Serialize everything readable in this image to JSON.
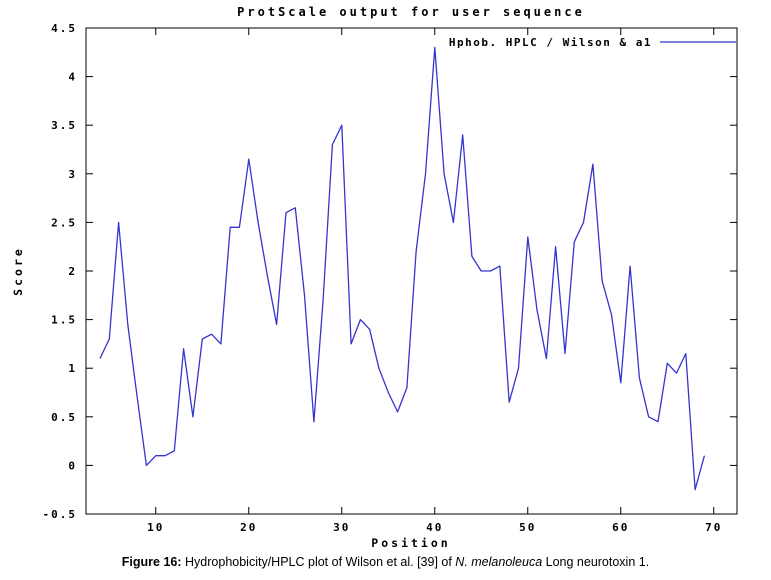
{
  "figure": {
    "title": "ProtScale output for user sequence",
    "legend": "Hphob. HPLC / Wilson & a1",
    "xlabel": "Position",
    "ylabel": "Score"
  },
  "caption": {
    "prefix": "Figure 16:",
    "body": " Hydrophobicity/HPLC plot of Wilson et al. [39] of ",
    "species": "N. melanoleuca",
    "suffix": " Long neurotoxin 1."
  },
  "chart_data": {
    "type": "line",
    "title": "ProtScale output for user sequence",
    "xlabel": "Position",
    "ylabel": "Score",
    "xlim": [
      2.5,
      72.5
    ],
    "ylim": [
      -0.5,
      4.5
    ],
    "xticks": [
      10,
      20,
      30,
      40,
      50,
      60,
      70
    ],
    "yticks": [
      -0.5,
      0,
      0.5,
      1,
      1.5,
      2,
      2.5,
      3,
      3.5,
      4,
      4.5
    ],
    "grid": false,
    "legend_position": "top-right",
    "line_color": "#3534cd",
    "border_color": "#000000",
    "series": [
      {
        "name": "Hphob. HPLC / Wilson & a1",
        "x": [
          4,
          5,
          6,
          7,
          8,
          9,
          10,
          11,
          12,
          13,
          14,
          15,
          16,
          17,
          18,
          19,
          20,
          21,
          22,
          23,
          24,
          25,
          26,
          27,
          28,
          29,
          30,
          31,
          32,
          33,
          34,
          35,
          36,
          37,
          38,
          39,
          40,
          41,
          42,
          43,
          44,
          45,
          46,
          47,
          48,
          49,
          50,
          51,
          52,
          53,
          54,
          55,
          56,
          57,
          58,
          59,
          60,
          61,
          62,
          63,
          64,
          65,
          66,
          67,
          68,
          69
        ],
        "y": [
          1.1,
          1.3,
          2.5,
          1.45,
          0.7,
          0.0,
          0.1,
          0.1,
          0.15,
          1.2,
          0.5,
          1.3,
          1.35,
          1.25,
          2.45,
          2.45,
          3.15,
          2.5,
          1.95,
          1.45,
          2.6,
          2.65,
          1.75,
          0.45,
          1.7,
          3.3,
          3.5,
          1.25,
          1.5,
          1.4,
          1.0,
          0.75,
          0.55,
          0.8,
          2.2,
          3.0,
          4.3,
          3.0,
          2.5,
          3.4,
          2.15,
          2.0,
          2.0,
          2.05,
          0.65,
          1.0,
          2.35,
          1.6,
          1.1,
          2.25,
          1.15,
          2.3,
          2.5,
          3.1,
          1.9,
          1.55,
          0.85,
          2.05,
          0.9,
          0.5,
          0.45,
          1.05,
          0.95,
          1.15,
          -0.25,
          0.1
        ]
      }
    ]
  }
}
